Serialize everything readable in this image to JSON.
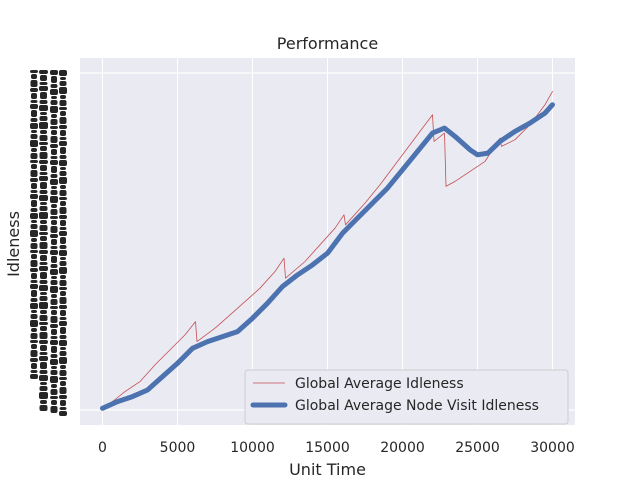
{
  "chart_data": {
    "type": "line",
    "title": "Performance",
    "xlabel": "Unit Time",
    "ylabel": "Idleness",
    "xlim": [
      -1500,
      31500
    ],
    "ylim": [
      -1.0,
      21.0
    ],
    "xticks": [
      0,
      5000,
      10000,
      15000,
      20000,
      25000,
      30000
    ],
    "xtick_labels": [
      "0",
      "5000",
      "10000",
      "15000",
      "20000",
      "25000",
      "30000"
    ],
    "grid": true,
    "legend_position": "lower-right",
    "series": [
      {
        "name": "Global Average Idleness",
        "color": "#c44e52",
        "style": "thin-line",
        "x": [
          0,
          800,
          1500,
          2500,
          3500,
          4500,
          5500,
          6200,
          6300,
          7500,
          8500,
          9500,
          10500,
          11500,
          12100,
          12200,
          13500,
          14500,
          15500,
          16100,
          16200,
          17500,
          18500,
          19500,
          20500,
          21500,
          22000,
          22100,
          22800,
          22900,
          23500,
          24500,
          25500,
          26500,
          26600,
          27500,
          28500,
          29500,
          30000
        ],
        "y": [
          0.0,
          0.5,
          1.0,
          1.6,
          2.6,
          3.5,
          4.4,
          5.2,
          4.0,
          4.8,
          5.6,
          6.4,
          7.2,
          8.2,
          9.0,
          7.8,
          8.8,
          9.8,
          10.8,
          11.6,
          11.0,
          12.3,
          13.4,
          14.6,
          15.8,
          17.0,
          17.6,
          16.0,
          16.5,
          13.3,
          13.6,
          14.2,
          14.8,
          16.2,
          15.7,
          16.1,
          17.0,
          18.2,
          19.0
        ]
      },
      {
        "name": "Global Average Node Visit Idleness",
        "color": "#4c72b0",
        "style": "thick-line",
        "x": [
          0,
          1000,
          2000,
          3000,
          4000,
          5000,
          6000,
          7000,
          8000,
          9000,
          10000,
          11000,
          12000,
          13000,
          14000,
          15000,
          16000,
          17000,
          18000,
          19000,
          20000,
          21000,
          22000,
          22800,
          23500,
          24500,
          25000,
          25700,
          26500,
          27500,
          28500,
          29500,
          30000
        ],
        "y": [
          0.0,
          0.4,
          0.7,
          1.1,
          1.9,
          2.7,
          3.6,
          4.0,
          4.3,
          4.6,
          5.4,
          6.3,
          7.3,
          8.0,
          8.6,
          9.3,
          10.5,
          11.4,
          12.3,
          13.2,
          14.3,
          15.4,
          16.5,
          16.8,
          16.3,
          15.5,
          15.2,
          15.3,
          16.0,
          16.6,
          17.1,
          17.7,
          18.2
        ]
      }
    ]
  }
}
